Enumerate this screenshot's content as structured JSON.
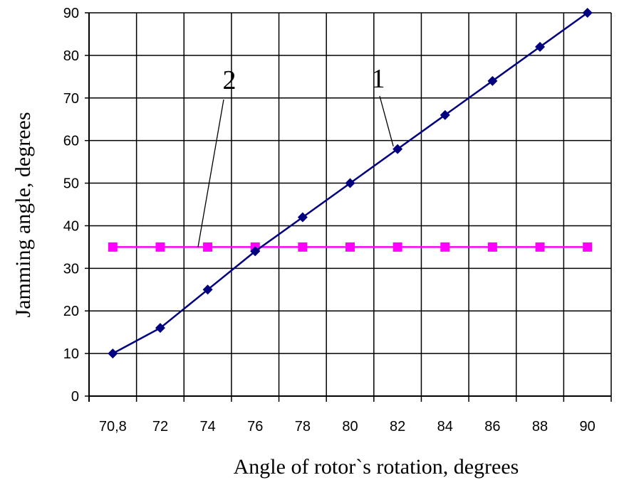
{
  "chart_data": {
    "type": "line",
    "xlabel": "Angle of rotor`s rotation, degrees",
    "ylabel": "Jamming angle, degrees",
    "categories": [
      "70,8",
      "72",
      "74",
      "76",
      "78",
      "80",
      "82",
      "84",
      "86",
      "88",
      "90"
    ],
    "ylim": [
      0,
      90
    ],
    "yticks": [
      "0",
      "10",
      "20",
      "30",
      "40",
      "50",
      "60",
      "70",
      "80",
      "90"
    ],
    "grid": true,
    "legend": "none",
    "series": [
      {
        "name": "1",
        "values": [
          10,
          16,
          25,
          34,
          42,
          50,
          58,
          66,
          74,
          82,
          90
        ],
        "color": "#000080",
        "marker": "diamond"
      },
      {
        "name": "2",
        "values": [
          35,
          35,
          35,
          35,
          35,
          35,
          35,
          35,
          35,
          35,
          35
        ],
        "color": "#ff00ff",
        "marker": "square"
      }
    ]
  }
}
